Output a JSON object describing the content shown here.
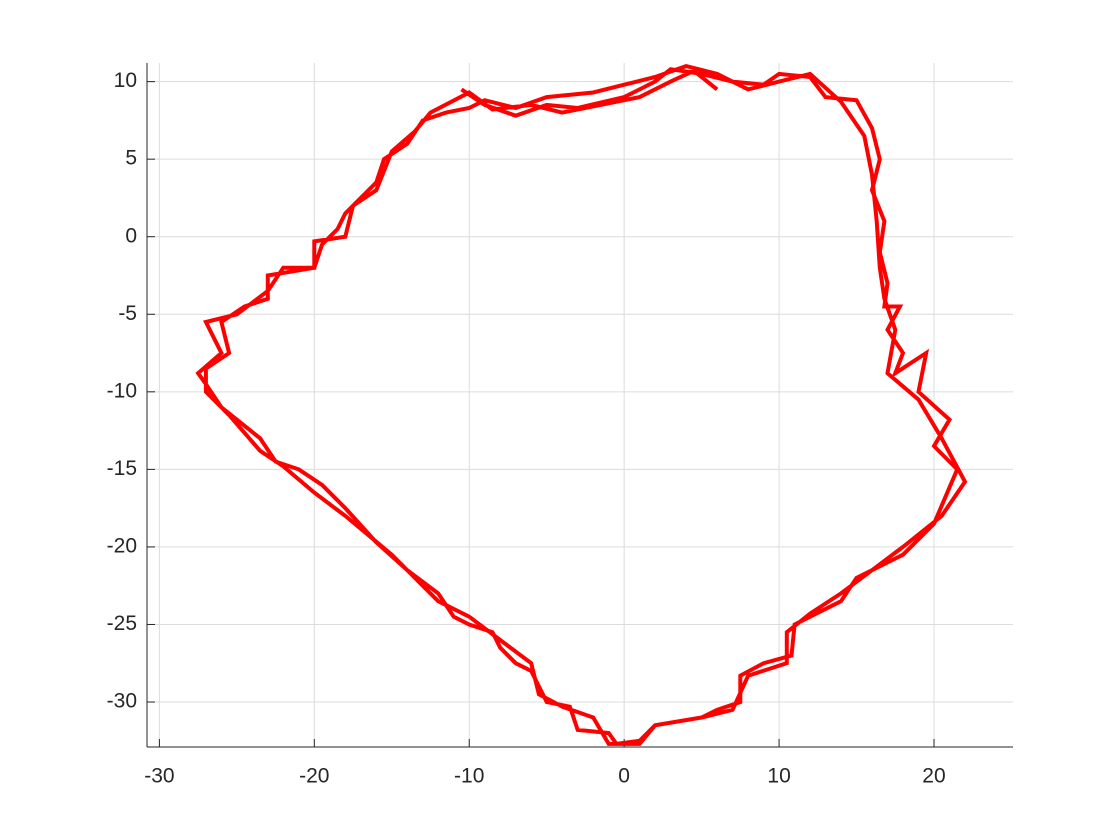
{
  "chart_data": {
    "type": "line",
    "xlim": [
      -30.8,
      25.1
    ],
    "ylim": [
      -32.9,
      11.2
    ],
    "xticks": [
      -30,
      -20,
      -10,
      0,
      10,
      20
    ],
    "yticks": [
      -30,
      -25,
      -20,
      -15,
      -10,
      -5,
      0,
      5,
      10
    ],
    "grid": true,
    "series": [
      {
        "color": "#ff0000",
        "x": [
          -10.5,
          -9,
          -7,
          -5,
          -3,
          0,
          2,
          3,
          5,
          7,
          9,
          10,
          12,
          13,
          15,
          16,
          16.5,
          16,
          16.8,
          16.5,
          17,
          16.8,
          17.8,
          17,
          18,
          17.5,
          19.5,
          19,
          21,
          20,
          21.5,
          20,
          18,
          15,
          14,
          12,
          11,
          10.8,
          9,
          7.5,
          7.5,
          6,
          5,
          2,
          1,
          -0.5,
          -1,
          -3,
          -3.5,
          -5,
          -6,
          -7,
          -8,
          -8.5,
          -10,
          -11,
          -12,
          -14,
          -16,
          -18,
          -19.5,
          -21,
          -22.5,
          -23.5,
          -25,
          -26,
          -27,
          -27.5,
          -26,
          -27,
          -25,
          -23,
          -22,
          -20,
          -19.5,
          -18.5,
          -18,
          -17,
          -16,
          -15.5,
          -14,
          -13,
          -11.5,
          -10,
          -9,
          -7,
          -5,
          -2,
          0,
          2,
          4,
          6,
          8,
          10,
          12,
          14,
          15.5,
          16,
          16.3,
          16.5,
          16.8,
          17.5,
          17,
          19,
          20.5,
          22,
          20.5,
          18,
          16,
          14,
          12,
          10.5,
          10.5,
          8,
          7,
          5,
          2,
          1,
          -1,
          -2,
          -4,
          -5.5,
          -6,
          -8,
          -10,
          -12,
          -15,
          -18,
          -20,
          -22,
          -23.5,
          -25.5,
          -27,
          -27,
          -25.5,
          -26,
          -24.5,
          -23,
          -23,
          -20,
          -20,
          -18,
          -17.5,
          -16,
          -15,
          -13.5,
          -12.5,
          -10,
          -8.5,
          -6,
          -4,
          -1,
          1,
          3,
          4.5,
          6
        ],
        "y": [
          9.5,
          8.5,
          7.8,
          8.5,
          8.3,
          9,
          10,
          10.8,
          10.5,
          10,
          9.8,
          10.5,
          10.3,
          9,
          8.8,
          7,
          5,
          3,
          1,
          -1,
          -3,
          -4.5,
          -4.5,
          -6,
          -7.5,
          -8.8,
          -7.5,
          -10,
          -11.8,
          -13.5,
          -15,
          -18.5,
          -20.5,
          -22,
          -23.5,
          -24.5,
          -25,
          -27,
          -27.5,
          -28.3,
          -30,
          -30.5,
          -31,
          -31.5,
          -32.5,
          -32.7,
          -32,
          -31.8,
          -30.3,
          -30,
          -28,
          -27.5,
          -26.5,
          -25.5,
          -25,
          -24.5,
          -23,
          -21.5,
          -19.7,
          -17.5,
          -16,
          -15,
          -14.5,
          -13,
          -11.8,
          -11,
          -9.5,
          -8.8,
          -7.5,
          -5.5,
          -5,
          -3.5,
          -2,
          -2,
          -0.5,
          0.5,
          1.5,
          2.5,
          3.5,
          5,
          6,
          7.5,
          8,
          8.3,
          8.8,
          8.3,
          9,
          9.3,
          9.8,
          10.3,
          11,
          10.5,
          9.5,
          10,
          10.5,
          8.7,
          6.5,
          4,
          1,
          -2,
          -4,
          -6,
          -8.8,
          -10.5,
          -13,
          -15.8,
          -18,
          -20,
          -21.5,
          -23,
          -24.3,
          -25.5,
          -27.5,
          -28.3,
          -30.5,
          -31,
          -31.5,
          -32.7,
          -32.7,
          -31,
          -30.3,
          -29.5,
          -27.5,
          -26,
          -24.5,
          -23.5,
          -20.5,
          -18,
          -16.5,
          -14.8,
          -13.8,
          -11.5,
          -10,
          -8.5,
          -7.5,
          -5.5,
          -4.5,
          -4,
          -2.5,
          -2,
          -0.3,
          0,
          2,
          3,
          5.5,
          6.8,
          8,
          9.3,
          8.2,
          8.5,
          8,
          8.6,
          9,
          10,
          10.7,
          9.5
        ]
      }
    ]
  }
}
